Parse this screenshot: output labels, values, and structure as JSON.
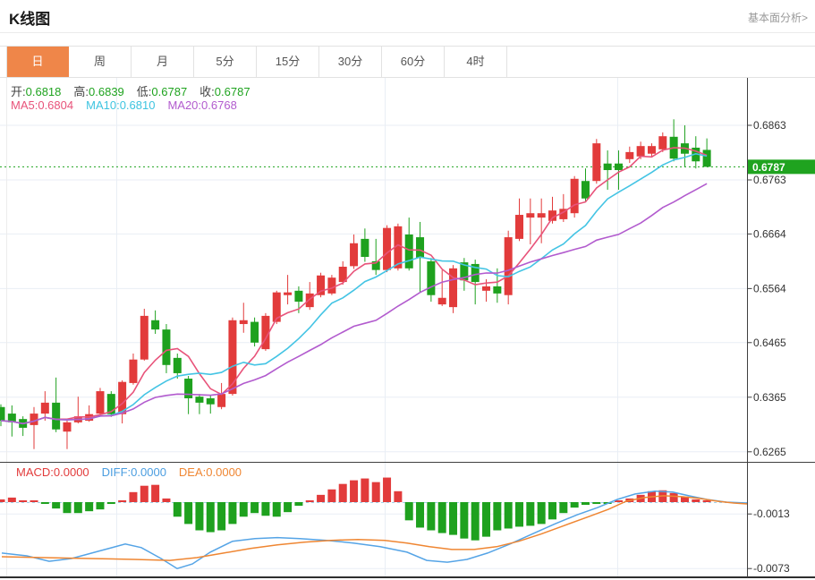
{
  "header": {
    "title": "K线图",
    "link": "基本面分析>"
  },
  "tabs": {
    "items": [
      {
        "key": "day",
        "label": "日",
        "active": true
      },
      {
        "key": "week",
        "label": "周",
        "active": false
      },
      {
        "key": "month",
        "label": "月",
        "active": false
      },
      {
        "key": "m5",
        "label": "5分",
        "active": false
      },
      {
        "key": "m15",
        "label": "15分",
        "active": false
      },
      {
        "key": "m30",
        "label": "30分",
        "active": false
      },
      {
        "key": "m60",
        "label": "60分",
        "active": false
      },
      {
        "key": "h4",
        "label": "4时",
        "active": false
      }
    ]
  },
  "ohlc_row": {
    "value_color": "#1fa31f",
    "items": [
      {
        "label": "开:",
        "value": "0.6818"
      },
      {
        "label": "高:",
        "value": "0.6839"
      },
      {
        "label": "低:",
        "value": "0.6787"
      },
      {
        "label": "收:",
        "value": "0.6787"
      }
    ]
  },
  "ma_row": {
    "items": [
      {
        "label": "MA5:",
        "value": "0.6804",
        "color": "#e8537a"
      },
      {
        "label": "MA10:",
        "value": "0.6810",
        "color": "#3ec4e0"
      },
      {
        "label": "MA20:",
        "value": "0.6768",
        "color": "#b25bce"
      }
    ]
  },
  "macd_row": {
    "items": [
      {
        "label": "MACD:",
        "value": "0.0000",
        "color": "#e23b3b"
      },
      {
        "label": "DIFF:",
        "value": "0.0000",
        "color": "#4a9de0"
      },
      {
        "label": "DEA:",
        "value": "0.0000",
        "color": "#ef8632"
      }
    ]
  },
  "chart_data": {
    "type": "candlestick",
    "title": "K线图 daily candlestick with MA5/MA10/MA20 and MACD",
    "price_axis_labels": [
      0.6863,
      0.6763,
      0.6664,
      0.6564,
      0.6465,
      0.6365,
      0.6265
    ],
    "last_price": "0.6787",
    "last_price_value": 0.6787,
    "macd_axis_labels": [
      -0.0013,
      -0.0073
    ],
    "legend": [
      "MA5",
      "MA10",
      "MA20",
      "MACD",
      "DIFF",
      "DEA"
    ],
    "ma_periods": [
      5,
      10,
      20
    ],
    "grid": true,
    "colors": {
      "up": "#e23b3b",
      "down": "#1ea11e",
      "ma5": "#e8537a",
      "ma10": "#44c4e4",
      "ma20": "#b25bce",
      "diff": "#55a4e6",
      "dea": "#ef8632",
      "price_line": "#1fa31f",
      "price_box": "#1fa31f",
      "grid": "#e9eef5",
      "axis": "#3f3f3f",
      "zero_line": "#9fd2ea"
    },
    "candles_ohlc": [
      [
        0.6347,
        0.6352,
        0.6312,
        0.6322
      ],
      [
        0.6335,
        0.635,
        0.6293,
        0.6319
      ],
      [
        0.6325,
        0.633,
        0.6294,
        0.6309
      ],
      [
        0.6314,
        0.6347,
        0.627,
        0.6335
      ],
      [
        0.6335,
        0.6376,
        0.6322,
        0.6355
      ],
      [
        0.6355,
        0.6401,
        0.6301,
        0.6306
      ],
      [
        0.6302,
        0.6322,
        0.627,
        0.6319
      ],
      [
        0.6319,
        0.6366,
        0.6317,
        0.633
      ],
      [
        0.6322,
        0.635,
        0.632,
        0.6334
      ],
      [
        0.6335,
        0.6382,
        0.6333,
        0.6376
      ],
      [
        0.6371,
        0.6376,
        0.6329,
        0.6334
      ],
      [
        0.6334,
        0.6396,
        0.6317,
        0.6393
      ],
      [
        0.6391,
        0.6445,
        0.6388,
        0.6434
      ],
      [
        0.6434,
        0.6527,
        0.6432,
        0.6514
      ],
      [
        0.6506,
        0.6524,
        0.6481,
        0.6489
      ],
      [
        0.6489,
        0.6499,
        0.6409,
        0.6424
      ],
      [
        0.6437,
        0.6445,
        0.6399,
        0.6409
      ],
      [
        0.6399,
        0.6404,
        0.6334,
        0.6363
      ],
      [
        0.6366,
        0.6371,
        0.6334,
        0.6355
      ],
      [
        0.6363,
        0.6368,
        0.6335,
        0.6352
      ],
      [
        0.6347,
        0.6391,
        0.6343,
        0.6371
      ],
      [
        0.6371,
        0.6511,
        0.6368,
        0.6506
      ],
      [
        0.6499,
        0.6538,
        0.6483,
        0.6506
      ],
      [
        0.6503,
        0.6511,
        0.6458,
        0.6465
      ],
      [
        0.6453,
        0.6519,
        0.645,
        0.6514
      ],
      [
        0.6503,
        0.656,
        0.6499,
        0.6557
      ],
      [
        0.6552,
        0.6589,
        0.6535,
        0.6557
      ],
      [
        0.656,
        0.6568,
        0.6519,
        0.654
      ],
      [
        0.653,
        0.6576,
        0.6525,
        0.6555
      ],
      [
        0.6552,
        0.6593,
        0.6548,
        0.6588
      ],
      [
        0.6555,
        0.6589,
        0.6552,
        0.6584
      ],
      [
        0.6576,
        0.6614,
        0.6571,
        0.6604
      ],
      [
        0.6605,
        0.6663,
        0.66,
        0.6647
      ],
      [
        0.6655,
        0.6674,
        0.6613,
        0.6622
      ],
      [
        0.6614,
        0.6655,
        0.6589,
        0.6598
      ],
      [
        0.6598,
        0.668,
        0.6594,
        0.6675
      ],
      [
        0.6601,
        0.6683,
        0.6597,
        0.6678
      ],
      [
        0.6663,
        0.6694,
        0.6597,
        0.6601
      ],
      [
        0.6658,
        0.6686,
        0.6557,
        0.662
      ],
      [
        0.6614,
        0.662,
        0.654,
        0.6552
      ],
      [
        0.6535,
        0.6598,
        0.6532,
        0.6547
      ],
      [
        0.653,
        0.6607,
        0.6519,
        0.6601
      ],
      [
        0.6612,
        0.662,
        0.656,
        0.6579
      ],
      [
        0.6609,
        0.6617,
        0.6535,
        0.6576
      ],
      [
        0.656,
        0.6581,
        0.654,
        0.6568
      ],
      [
        0.6568,
        0.6601,
        0.6538,
        0.6555
      ],
      [
        0.6552,
        0.667,
        0.6535,
        0.6658
      ],
      [
        0.6655,
        0.6729,
        0.6651,
        0.6699
      ],
      [
        0.6694,
        0.6729,
        0.6645,
        0.6702
      ],
      [
        0.6694,
        0.6729,
        0.6647,
        0.6702
      ],
      [
        0.6688,
        0.6732,
        0.6683,
        0.6707
      ],
      [
        0.6691,
        0.6737,
        0.6686,
        0.671
      ],
      [
        0.6702,
        0.677,
        0.6694,
        0.6765
      ],
      [
        0.6761,
        0.6784,
        0.6724,
        0.6729
      ],
      [
        0.6761,
        0.6838,
        0.6756,
        0.683
      ],
      [
        0.6793,
        0.6817,
        0.6745,
        0.6781
      ],
      [
        0.6793,
        0.6817,
        0.6745,
        0.6781
      ],
      [
        0.6801,
        0.6824,
        0.6794,
        0.6814
      ],
      [
        0.6806,
        0.6833,
        0.6801,
        0.6825
      ],
      [
        0.6811,
        0.683,
        0.6806,
        0.6825
      ],
      [
        0.6819,
        0.685,
        0.6814,
        0.6843
      ],
      [
        0.6842,
        0.6874,
        0.6797,
        0.6802
      ],
      [
        0.683,
        0.6863,
        0.6786,
        0.6811
      ],
      [
        0.6822,
        0.6843,
        0.6784,
        0.6797
      ],
      [
        0.6818,
        0.6839,
        0.6787,
        0.6787
      ]
    ],
    "macd_hist": [
      0.0003,
      0.0005,
      0.0001,
      0.0,
      -0.0001,
      -0.0007,
      -0.0012,
      -0.0012,
      -0.001,
      -0.0008,
      -0.0002,
      0.0002,
      0.0011,
      0.0018,
      0.0019,
      0.0004,
      -0.0016,
      -0.0024,
      -0.0031,
      -0.0033,
      -0.0031,
      -0.0024,
      -0.0016,
      -0.0012,
      -0.0015,
      -0.0016,
      -0.0011,
      -0.0004,
      0.0,
      0.0008,
      0.0014,
      0.002,
      0.0024,
      0.0026,
      0.0022,
      0.0027,
      0.0012,
      -0.002,
      -0.0028,
      -0.0031,
      -0.0034,
      -0.0036,
      -0.004,
      -0.0042,
      -0.0038,
      -0.0031,
      -0.0029,
      -0.0027,
      -0.0026,
      -0.0024,
      -0.0019,
      -0.0012,
      -0.0006,
      -0.0003,
      -0.0002,
      -0.0001,
      0.0001,
      0.0004,
      0.0008,
      0.0012,
      0.0013,
      0.001,
      0.0006,
      0.0003,
      0.0001
    ],
    "diff_line": [
      [
        2,
        -0.0056
      ],
      [
        30,
        -0.0059
      ],
      [
        55,
        -0.0065
      ],
      [
        80,
        -0.0062
      ],
      [
        110,
        -0.0054
      ],
      [
        140,
        -0.0046
      ],
      [
        158,
        -0.005
      ],
      [
        180,
        -0.0062
      ],
      [
        198,
        -0.0073
      ],
      [
        215,
        -0.0068
      ],
      [
        235,
        -0.0055
      ],
      [
        260,
        -0.0043
      ],
      [
        285,
        -0.004
      ],
      [
        310,
        -0.0039
      ],
      [
        335,
        -0.004
      ],
      [
        365,
        -0.0042
      ],
      [
        395,
        -0.0045
      ],
      [
        425,
        -0.0049
      ],
      [
        455,
        -0.0055
      ],
      [
        477,
        -0.0064
      ],
      [
        500,
        -0.0066
      ],
      [
        522,
        -0.0063
      ],
      [
        545,
        -0.0056
      ],
      [
        570,
        -0.0046
      ],
      [
        595,
        -0.0035
      ],
      [
        620,
        -0.0024
      ],
      [
        645,
        -0.0014
      ],
      [
        668,
        -0.0006
      ],
      [
        690,
        0.0003
      ],
      [
        710,
        0.0009
      ],
      [
        732,
        0.0012
      ],
      [
        752,
        0.0011
      ],
      [
        770,
        0.0007
      ],
      [
        790,
        0.0003
      ],
      [
        812,
        0.0
      ],
      [
        835,
        -0.0001
      ]
    ],
    "dea_line": [
      [
        2,
        -0.006
      ],
      [
        50,
        -0.0061
      ],
      [
        100,
        -0.0062
      ],
      [
        150,
        -0.0063
      ],
      [
        190,
        -0.0064
      ],
      [
        220,
        -0.0061
      ],
      [
        250,
        -0.0056
      ],
      [
        280,
        -0.0051
      ],
      [
        310,
        -0.0047
      ],
      [
        340,
        -0.0044
      ],
      [
        370,
        -0.0042
      ],
      [
        400,
        -0.0041
      ],
      [
        430,
        -0.0042
      ],
      [
        455,
        -0.0045
      ],
      [
        480,
        -0.0049
      ],
      [
        505,
        -0.0052
      ],
      [
        530,
        -0.0052
      ],
      [
        555,
        -0.0049
      ],
      [
        580,
        -0.0043
      ],
      [
        605,
        -0.0035
      ],
      [
        630,
        -0.0026
      ],
      [
        655,
        -0.0017
      ],
      [
        680,
        -0.0008
      ],
      [
        700,
        0.0001
      ],
      [
        720,
        0.0005
      ],
      [
        742,
        0.0007
      ],
      [
        762,
        0.0006
      ],
      [
        782,
        0.0004
      ],
      [
        802,
        0.0001
      ],
      [
        820,
        -0.0001
      ],
      [
        835,
        -0.0002
      ]
    ]
  }
}
